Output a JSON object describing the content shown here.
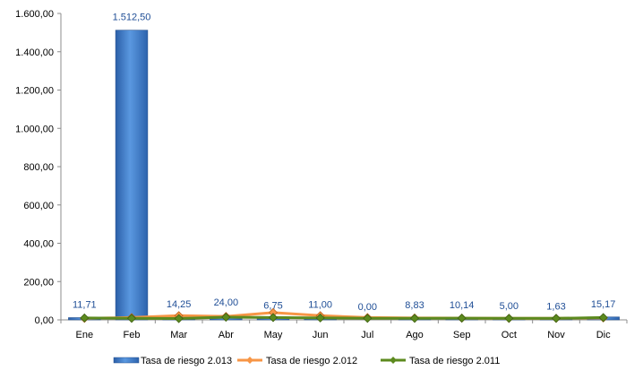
{
  "chart_data": {
    "type": "bar",
    "categories": [
      "Ene",
      "Feb",
      "Mar",
      "Abr",
      "May",
      "Jun",
      "Jul",
      "Ago",
      "Sep",
      "Oct",
      "Nov",
      "Dic"
    ],
    "ylim": [
      0,
      1600
    ],
    "yticks": [
      "0,00",
      "200,00",
      "400,00",
      "600,00",
      "800,00",
      "1.000,00",
      "1.200,00",
      "1.400,00",
      "1.600,00"
    ],
    "series": [
      {
        "name": "Tasa de riesgo 2.013",
        "kind": "bar",
        "color": "#3f7fd0",
        "values": [
          11.71,
          1512.5,
          14.25,
          24.0,
          6.75,
          11.0,
          0.0,
          8.83,
          10.14,
          5.0,
          1.63,
          15.17
        ],
        "labels": [
          "11,71",
          "1.512,50",
          "14,25",
          "24,00",
          "6,75",
          "11,00",
          "0,00",
          "8,83",
          "10,14",
          "5,00",
          "1,63",
          "15,17"
        ]
      },
      {
        "name": "Tasa de riesgo 2.012",
        "kind": "line",
        "color": "#f79646",
        "values": [
          8,
          12,
          22,
          18,
          38,
          22,
          12,
          10,
          9,
          8,
          8,
          10
        ]
      },
      {
        "name": "Tasa de riesgo 2.011",
        "kind": "line",
        "color": "#5c8a1e",
        "values": [
          10,
          8,
          7,
          14,
          12,
          10,
          8,
          8,
          9,
          8,
          8,
          12
        ]
      }
    ],
    "legend_position": "bottom",
    "grid": false
  }
}
